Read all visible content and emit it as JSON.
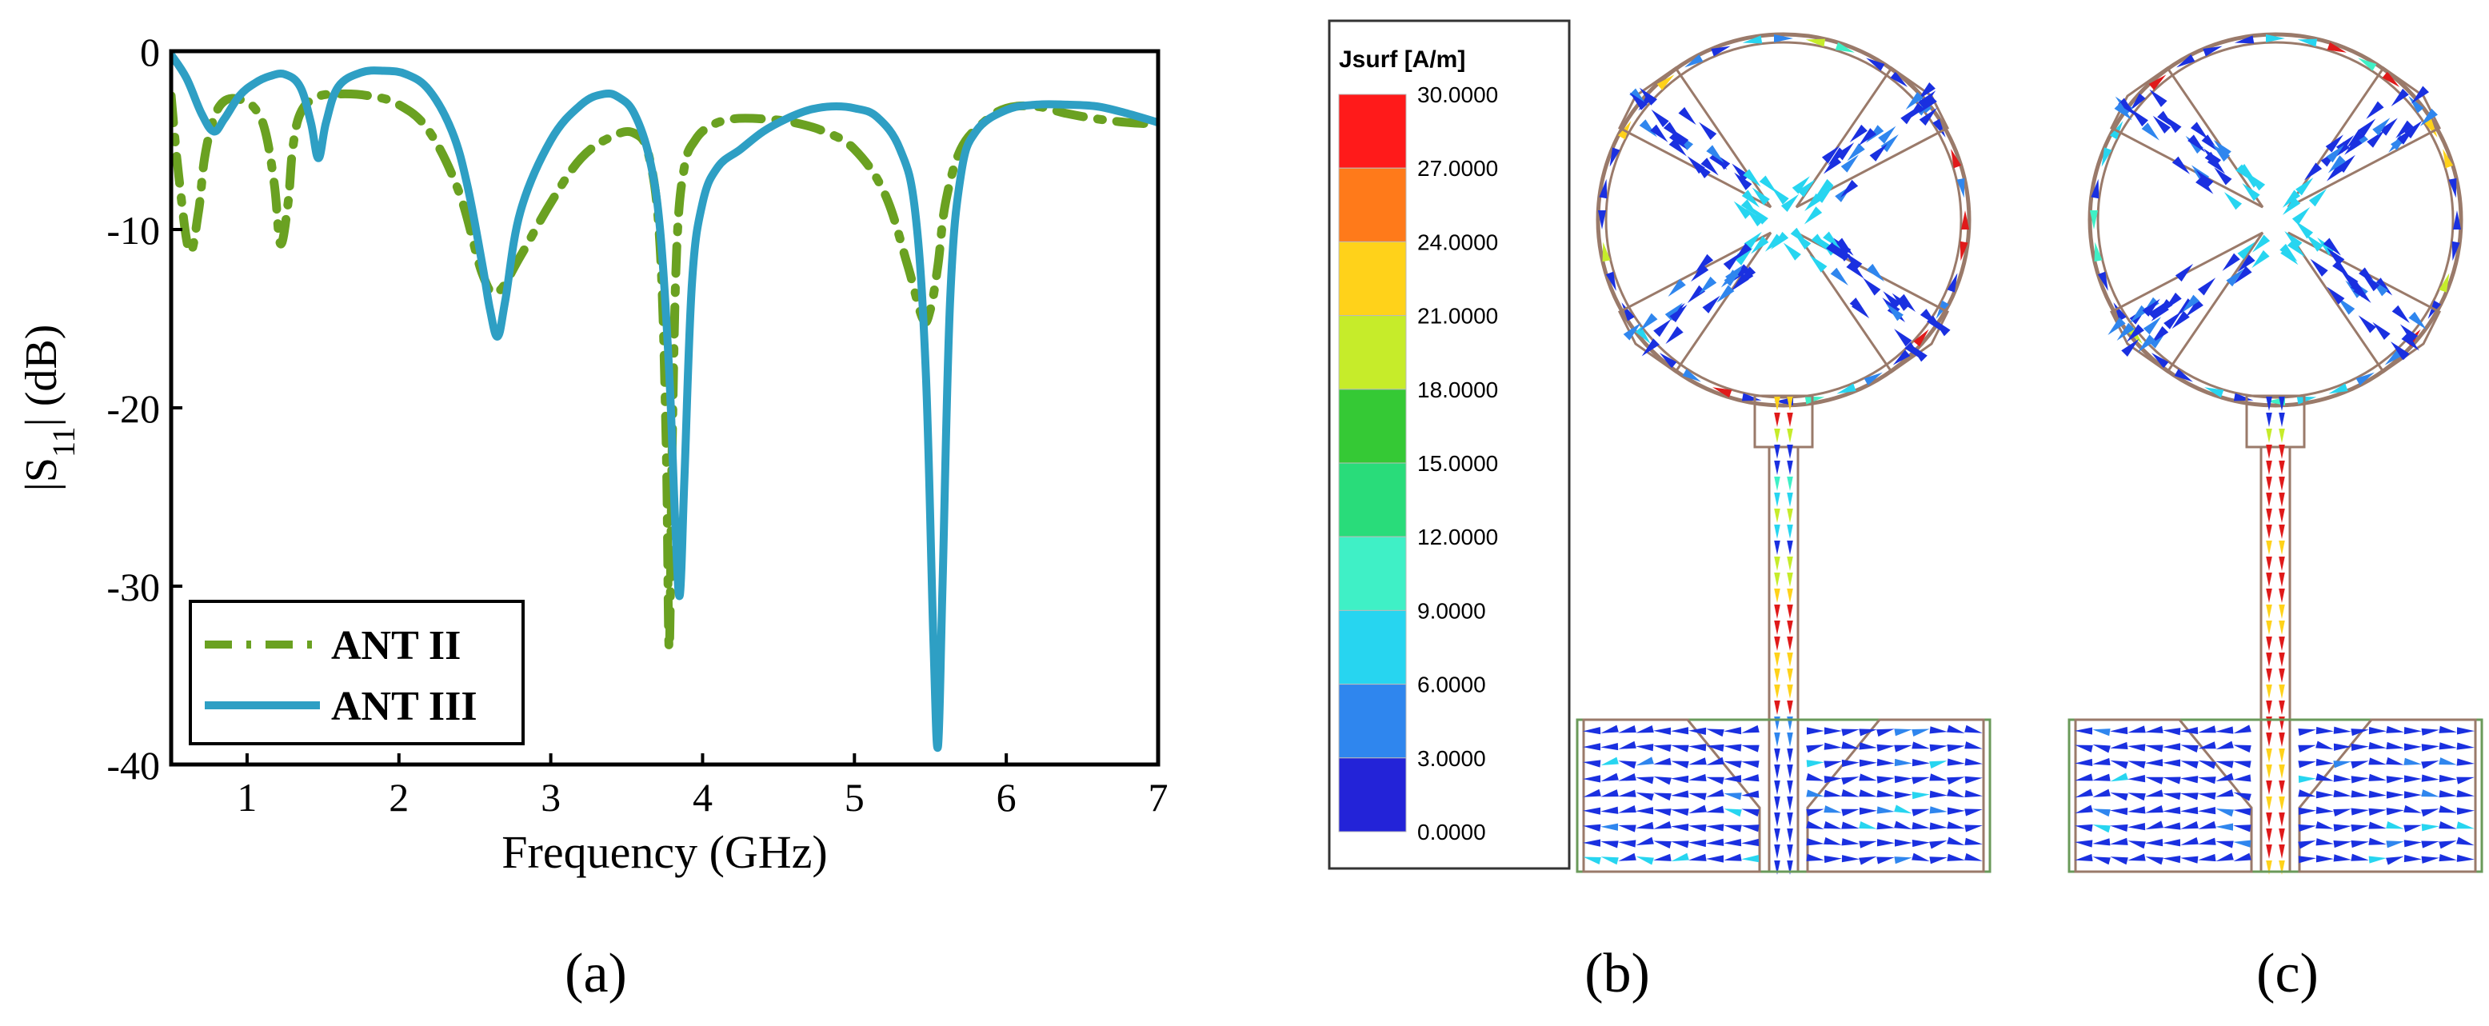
{
  "chart_data": [
    {
      "type": "line",
      "panel_label": "(a)",
      "title": "",
      "xlabel": "Frequency (GHz)",
      "ylabel": "|S11| (dB)",
      "ylabel_parts": {
        "pre": "|S",
        "sub": "11",
        "post": "| (dB)"
      },
      "xlim": [
        0.5,
        7
      ],
      "ylim": [
        -40,
        0
      ],
      "xticks": [
        1,
        2,
        3,
        4,
        5,
        6,
        7
      ],
      "yticks": [
        0,
        -10,
        -20,
        -30,
        -40
      ],
      "grid": false,
      "legend_position": "bottom-left",
      "series": [
        {
          "name": "ANT II",
          "style": "dash-dot",
          "color": "#6aa121",
          "x": [
            0.5,
            0.55,
            0.62,
            0.68,
            0.72,
            0.78,
            0.85,
            0.95,
            1.05,
            1.12,
            1.18,
            1.22,
            1.27,
            1.3,
            1.35,
            1.45,
            1.6,
            1.8,
            2.0,
            2.2,
            2.4,
            2.55,
            2.65,
            2.8,
            3.0,
            3.2,
            3.4,
            3.55,
            3.65,
            3.72,
            3.76,
            3.78,
            3.8,
            3.83,
            3.88,
            3.95,
            4.05,
            4.2,
            4.4,
            4.6,
            4.8,
            5.0,
            5.2,
            5.35,
            5.45,
            5.5,
            5.55,
            5.6,
            5.7,
            5.85,
            6.0,
            6.2,
            6.4,
            6.6,
            6.8,
            7.0
          ],
          "y": [
            -2.5,
            -7.0,
            -11.2,
            -9.0,
            -6.0,
            -3.8,
            -2.8,
            -2.7,
            -3.2,
            -4.5,
            -7.5,
            -10.8,
            -8.5,
            -5.5,
            -3.5,
            -2.6,
            -2.4,
            -2.5,
            -3.0,
            -4.5,
            -8.0,
            -12.5,
            -13.5,
            -11.5,
            -8.5,
            -6.0,
            -4.8,
            -4.6,
            -6.0,
            -11.0,
            -22.0,
            -33.5,
            -22.0,
            -11.0,
            -6.5,
            -5.0,
            -4.2,
            -3.8,
            -3.8,
            -4.0,
            -4.5,
            -5.5,
            -8.0,
            -12.0,
            -15.0,
            -14.5,
            -12.0,
            -8.5,
            -5.5,
            -4.0,
            -3.2,
            -3.1,
            -3.5,
            -3.8,
            -4.0,
            -4.1
          ]
        },
        {
          "name": "ANT III",
          "style": "solid",
          "color": "#2e9fc4",
          "x": [
            0.5,
            0.6,
            0.7,
            0.78,
            0.85,
            0.95,
            1.05,
            1.15,
            1.25,
            1.35,
            1.42,
            1.47,
            1.52,
            1.6,
            1.75,
            1.9,
            2.05,
            2.2,
            2.35,
            2.45,
            2.55,
            2.6,
            2.65,
            2.7,
            2.8,
            3.0,
            3.2,
            3.35,
            3.45,
            3.55,
            3.65,
            3.72,
            3.78,
            3.82,
            3.85,
            3.88,
            3.93,
            4.0,
            4.1,
            4.25,
            4.4,
            4.55,
            4.7,
            4.85,
            5.0,
            5.15,
            5.3,
            5.4,
            5.47,
            5.52,
            5.55,
            5.58,
            5.63,
            5.7,
            5.8,
            6.0,
            6.2,
            6.4,
            6.6,
            6.8,
            7.0
          ],
          "y": [
            -0.2,
            -1.5,
            -3.5,
            -4.5,
            -3.8,
            -2.5,
            -1.8,
            -1.4,
            -1.3,
            -2.0,
            -4.0,
            -6.0,
            -4.0,
            -2.0,
            -1.2,
            -1.1,
            -1.3,
            -2.2,
            -4.5,
            -7.5,
            -12.0,
            -14.5,
            -16.0,
            -14.0,
            -9.0,
            -5.0,
            -3.0,
            -2.4,
            -2.6,
            -3.5,
            -6.0,
            -10.0,
            -18.0,
            -26.5,
            -30.5,
            -24.0,
            -13.0,
            -8.5,
            -6.5,
            -5.5,
            -4.5,
            -3.8,
            -3.3,
            -3.1,
            -3.2,
            -3.7,
            -5.5,
            -9.0,
            -18.0,
            -33.0,
            -39.0,
            -30.0,
            -14.0,
            -7.0,
            -4.5,
            -3.3,
            -3.0,
            -3.0,
            -3.1,
            -3.5,
            -4.0
          ]
        }
      ]
    },
    {
      "type": "heatmap",
      "panel_label": "(b)",
      "colorbar_title": "Jsurf [A/m]",
      "colorbar_min": 0,
      "colorbar_max": 30,
      "colorbar_ticks": [
        "30.0000",
        "27.0000",
        "24.0000",
        "21.0000",
        "18.0000",
        "15.0000",
        "12.0000",
        "9.0000",
        "6.0000",
        "3.0000",
        "0.0000"
      ],
      "colorbar_colors": [
        "#ff1a1a",
        "#ff7a1a",
        "#ffd21a",
        "#c6ec2a",
        "#35c935",
        "#29dc7a",
        "#3ff0c6",
        "#27d5f0",
        "#2f86ee",
        "#2323d8"
      ],
      "description": "Surface current distribution of ANT II"
    },
    {
      "type": "heatmap",
      "panel_label": "(c)",
      "description": "Surface current distribution of ANT III"
    }
  ],
  "colors": {
    "substrate_outline": "#6a9a5a",
    "patch_outline": "#9a7a6a",
    "arrow_low": "#1a30e0",
    "arrow_mid": "#27d5f0",
    "arrow_high": "#e01a1a"
  }
}
